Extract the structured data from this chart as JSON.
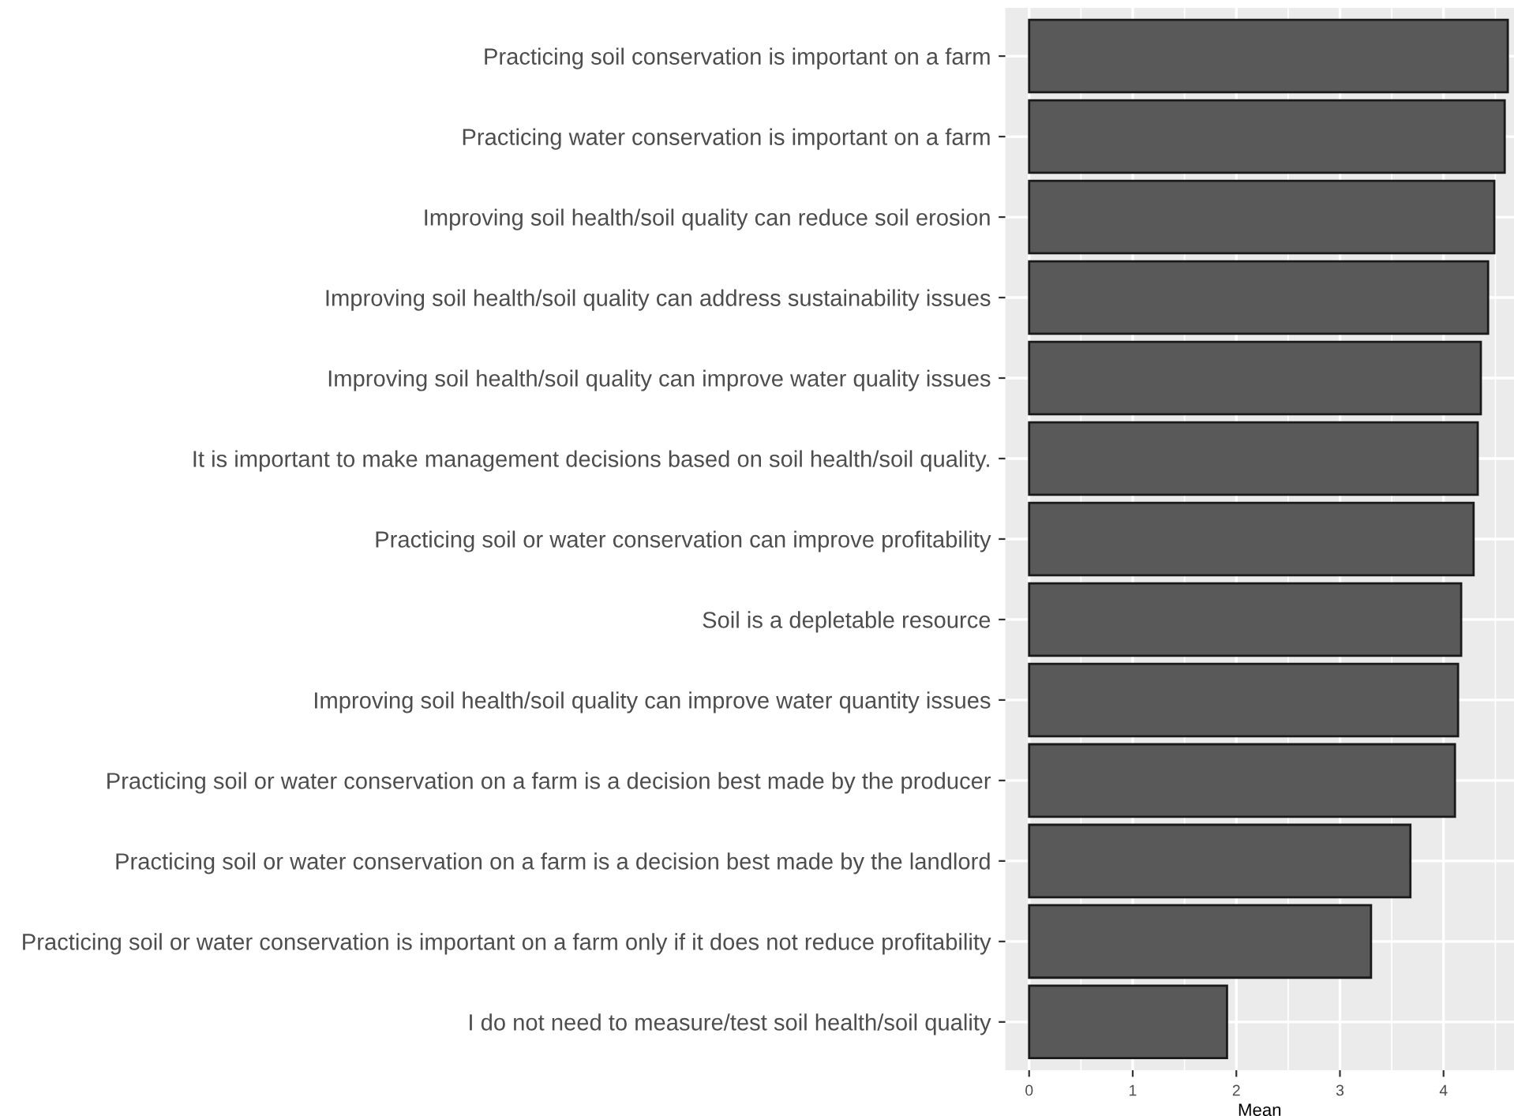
{
  "chart_data": {
    "type": "bar",
    "orientation": "horizontal",
    "xlabel": "Mean",
    "categories": [
      "Practicing soil conservation is important on a farm",
      "Practicing water conservation is important on a farm",
      "Improving soil health/soil quality can reduce soil erosion",
      "Improving soil health/soil quality can address sustainability issues",
      "Improving soil health/soil quality can improve water quality issues",
      "It is important to make management decisions based on soil health/soil quality.",
      "Practicing soil or water conservation can improve profitability",
      "Soil is a depletable resource",
      "Improving soil health/soil quality can improve water quantity issues",
      "Practicing soil or water conservation on a farm is a decision best made by the producer",
      "Practicing soil or water conservation on a farm is a decision best made by the landlord",
      "Practicing soil or water conservation is important on a farm only if it does not reduce profitability",
      "I do not need to measure/test soil health/soil quality"
    ],
    "values": [
      4.62,
      4.59,
      4.49,
      4.43,
      4.36,
      4.33,
      4.29,
      4.17,
      4.14,
      4.11,
      3.68,
      3.3,
      1.91
    ],
    "color": "#595959",
    "xlim": [
      -0.23,
      4.68
    ],
    "xticks": [
      0,
      1,
      2,
      3,
      4
    ],
    "grid": true
  }
}
